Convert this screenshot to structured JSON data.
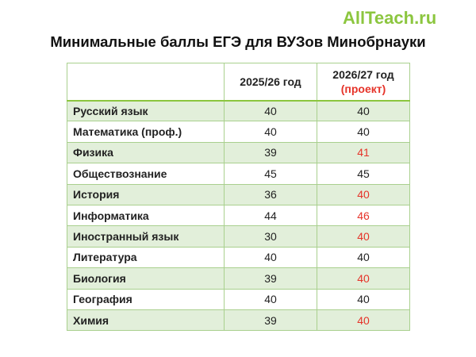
{
  "brand": "AllTeach.ru",
  "title": "Минимальные баллы ЕГЭ для ВУЗов Минобрнауки",
  "table": {
    "headers": {
      "subject": "",
      "year1": "2025/26 год",
      "year2": "2026/27 год",
      "year2_note": "(проект)"
    },
    "rows": [
      {
        "subject": "Русский язык",
        "y1": "40",
        "y2": "40",
        "changed": false
      },
      {
        "subject": "Математика (проф.)",
        "y1": "40",
        "y2": "40",
        "changed": false
      },
      {
        "subject": "Физика",
        "y1": "39",
        "y2": "41",
        "changed": true
      },
      {
        "subject": "Обществознание",
        "y1": "45",
        "y2": "45",
        "changed": false
      },
      {
        "subject": "История",
        "y1": "36",
        "y2": "40",
        "changed": true
      },
      {
        "subject": "Информатика",
        "y1": "44",
        "y2": "46",
        "changed": true
      },
      {
        "subject": "Иностранный язык",
        "y1": "30",
        "y2": "40",
        "changed": true
      },
      {
        "subject": "Литература",
        "y1": "40",
        "y2": "40",
        "changed": false
      },
      {
        "subject": "Биология",
        "y1": "39",
        "y2": "40",
        "changed": true
      },
      {
        "subject": "География",
        "y1": "40",
        "y2": "40",
        "changed": false
      },
      {
        "subject": "Химия",
        "y1": "39",
        "y2": "40",
        "changed": true
      }
    ]
  },
  "colors": {
    "brand": "#8cc63f",
    "row_shade": "#e2efda",
    "border": "#a9d08e",
    "changed_value": "#e63329"
  }
}
